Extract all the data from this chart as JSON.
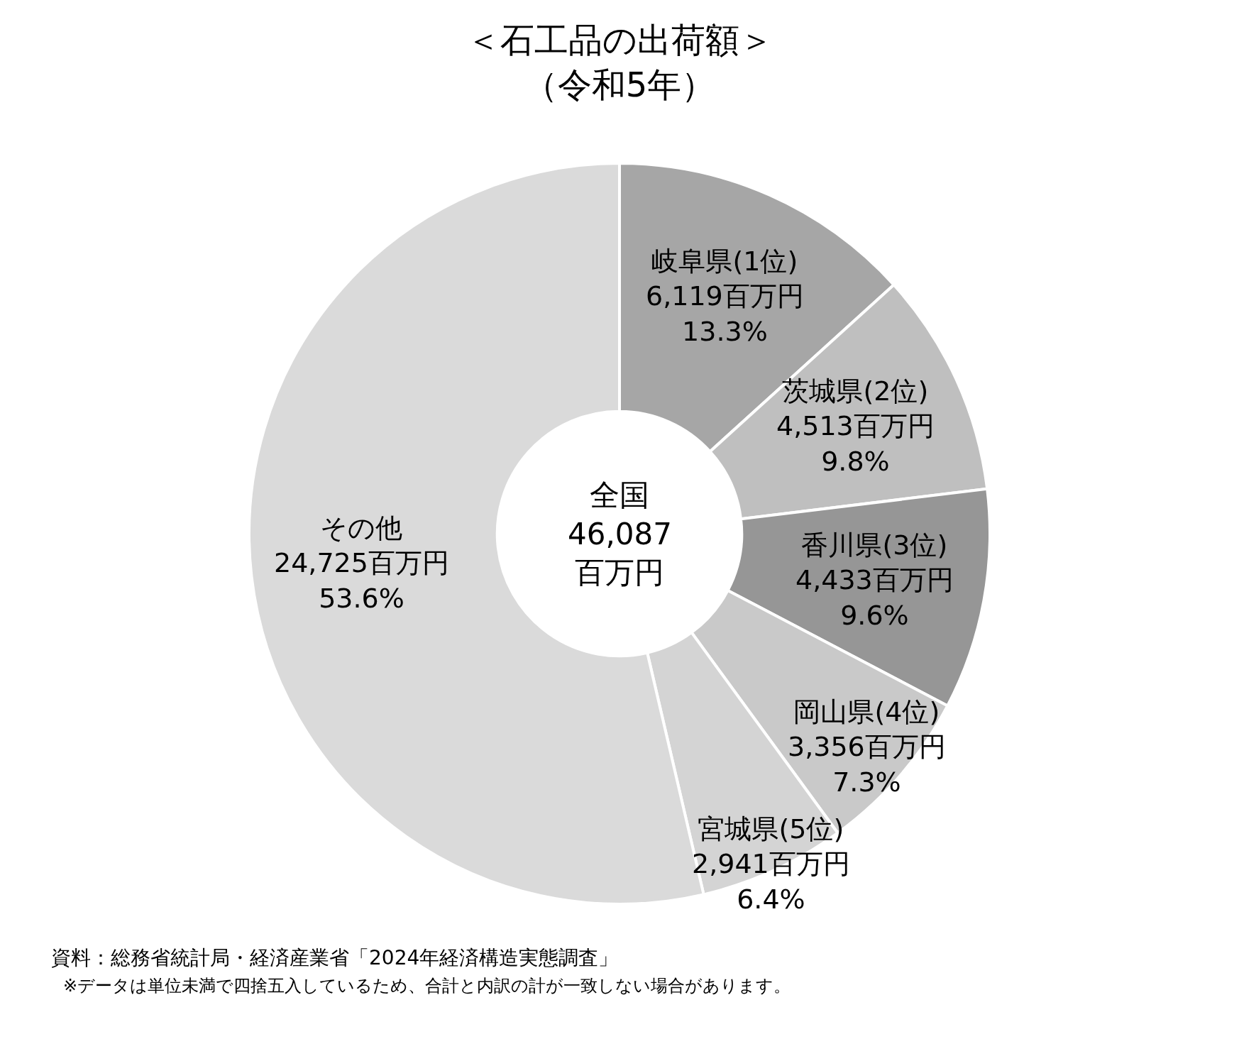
{
  "chart_data": {
    "type": "donut",
    "title": "＜石工品の出荷額＞",
    "subtitle": "（令和5年）",
    "categories": [
      "岐阜県(1位)",
      "茨城県(2位)",
      "香川県(3位)",
      "岡山県(4位)",
      "宮城県(5位)",
      "その他"
    ],
    "values": [
      6119,
      4513,
      4433,
      3356,
      2941,
      24725
    ],
    "value_labels": [
      "6,119百万円\n13.3%",
      "4,513百万円\n9.8%",
      "4,433百万円\n9.6%",
      "3,356百万円\n7.3%",
      "2,941百万円\n6.4%",
      "24,725百万円\n53.6%"
    ],
    "colors": [
      "#a6a6a6",
      "#bfbfbf",
      "#969696",
      "#c9c9c9",
      "#d4d4d4",
      "#dadada"
    ],
    "annotations": [
      "全国\n46,087\n百万円",
      "資料：総務省統計局・経済産業省「2024年経済構造実態調査」",
      "※データは単位未満で四捨五入しているため、合計と内訳の計が一致しない場合があります。"
    ],
    "legend": false
  }
}
